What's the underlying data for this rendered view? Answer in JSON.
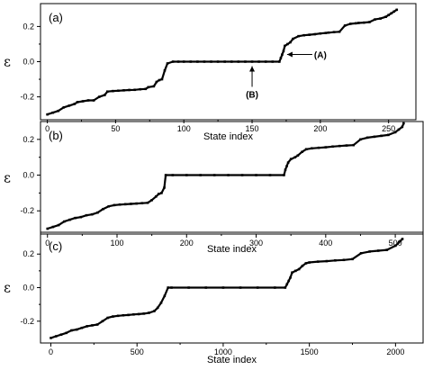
{
  "chart_data": [
    {
      "type": "scatter",
      "panel_label": "(a)",
      "ylabel": "ε",
      "xlabel": "State index",
      "xlim": [
        -5,
        270
      ],
      "ylim": [
        -0.33,
        0.33
      ],
      "x_ticks": [
        0,
        50,
        100,
        150,
        200,
        250
      ],
      "y_ticks": [
        -0.2,
        0.0,
        0.2
      ],
      "y_tick_labels": [
        "-0.2",
        "0.0",
        "0.2"
      ],
      "annotations": [
        {
          "text": "(A)",
          "target_x": 173,
          "target_y": 0.01
        },
        {
          "text": "(B)",
          "target_x": 150,
          "target_y": -0.01
        }
      ],
      "x": [
        0,
        4,
        8,
        12,
        16,
        20,
        22,
        26,
        30,
        34,
        38,
        42,
        44,
        48,
        52,
        56,
        60,
        64,
        68,
        72,
        74,
        78,
        80,
        82,
        84,
        86,
        88,
        92,
        96,
        100,
        105,
        110,
        115,
        120,
        125,
        130,
        135,
        140,
        145,
        150,
        155,
        160,
        165,
        170,
        171,
        172,
        173,
        174,
        176,
        178,
        180,
        184,
        188,
        192,
        196,
        200,
        204,
        206,
        210,
        214,
        218,
        222,
        226,
        228,
        232,
        236,
        240,
        244,
        248,
        250,
        252,
        254,
        256
      ],
      "y": [
        -0.3,
        -0.29,
        -0.28,
        -0.26,
        -0.25,
        -0.24,
        -0.23,
        -0.225,
        -0.22,
        -0.22,
        -0.2,
        -0.19,
        -0.17,
        -0.167,
        -0.165,
        -0.163,
        -0.161,
        -0.16,
        -0.157,
        -0.155,
        -0.145,
        -0.14,
        -0.115,
        -0.105,
        -0.1,
        -0.05,
        -0.01,
        0.0,
        0.0,
        0.0,
        0.0,
        0.0,
        0.0,
        0.0,
        0.0,
        0.0,
        0.0,
        0.0,
        0.0,
        0.0,
        0.0,
        0.0,
        0.0,
        0.0,
        0.02,
        0.04,
        0.06,
        0.09,
        0.1,
        0.11,
        0.13,
        0.145,
        0.15,
        0.153,
        0.156,
        0.16,
        0.163,
        0.165,
        0.168,
        0.17,
        0.205,
        0.215,
        0.218,
        0.22,
        0.222,
        0.225,
        0.24,
        0.245,
        0.255,
        0.265,
        0.275,
        0.285,
        0.295
      ]
    },
    {
      "type": "scatter",
      "panel_label": "(b)",
      "ylabel": "ε",
      "xlabel": "State index",
      "xlim": [
        -10,
        540
      ],
      "ylim": [
        -0.33,
        0.3
      ],
      "x_ticks": [
        0,
        100,
        200,
        300,
        400,
        500
      ],
      "y_ticks": [
        -0.2,
        0.0,
        0.2
      ],
      "y_tick_labels": [
        "-0.2",
        "0.0",
        "0.2"
      ],
      "x": [
        0,
        8,
        16,
        24,
        32,
        40,
        48,
        56,
        64,
        72,
        80,
        88,
        96,
        104,
        112,
        120,
        128,
        136,
        144,
        150,
        156,
        160,
        164,
        168,
        170,
        180,
        200,
        220,
        240,
        260,
        280,
        300,
        320,
        340,
        342,
        344,
        346,
        350,
        356,
        360,
        366,
        372,
        380,
        390,
        400,
        410,
        420,
        430,
        440,
        450,
        460,
        470,
        480,
        490,
        500,
        505,
        510,
        512
      ],
      "y": [
        -0.3,
        -0.29,
        -0.28,
        -0.26,
        -0.25,
        -0.24,
        -0.235,
        -0.225,
        -0.22,
        -0.21,
        -0.19,
        -0.175,
        -0.168,
        -0.165,
        -0.163,
        -0.161,
        -0.159,
        -0.157,
        -0.155,
        -0.14,
        -0.12,
        -0.105,
        -0.1,
        -0.07,
        0.0,
        0.0,
        0.0,
        0.0,
        0.0,
        0.0,
        0.0,
        0.0,
        0.0,
        0.0,
        0.03,
        0.05,
        0.07,
        0.09,
        0.1,
        0.11,
        0.13,
        0.145,
        0.15,
        0.153,
        0.156,
        0.16,
        0.163,
        0.166,
        0.168,
        0.2,
        0.21,
        0.215,
        0.22,
        0.225,
        0.24,
        0.255,
        0.27,
        0.29
      ]
    },
    {
      "type": "scatter",
      "panel_label": "(c)",
      "ylabel": "ε",
      "xlabel": "State index",
      "xlim": [
        -60,
        2160
      ],
      "ylim": [
        -0.33,
        0.33
      ],
      "x_ticks": [
        0,
        500,
        1000,
        1500,
        2000
      ],
      "y_ticks": [
        -0.2,
        0.0,
        0.2
      ],
      "y_tick_labels": [
        "-0.2",
        "0.0",
        "0.2"
      ],
      "x": [
        0,
        30,
        60,
        90,
        120,
        150,
        180,
        210,
        240,
        270,
        300,
        330,
        360,
        390,
        420,
        450,
        480,
        510,
        540,
        570,
        600,
        620,
        640,
        660,
        680,
        700,
        800,
        900,
        1000,
        1100,
        1200,
        1300,
        1360,
        1370,
        1380,
        1390,
        1400,
        1420,
        1440,
        1460,
        1480,
        1500,
        1550,
        1600,
        1650,
        1700,
        1750,
        1800,
        1850,
        1900,
        1950,
        2000,
        2020,
        2040
      ],
      "y": [
        -0.3,
        -0.29,
        -0.28,
        -0.27,
        -0.255,
        -0.25,
        -0.24,
        -0.23,
        -0.225,
        -0.22,
        -0.2,
        -0.18,
        -0.172,
        -0.168,
        -0.165,
        -0.163,
        -0.16,
        -0.158,
        -0.155,
        -0.15,
        -0.14,
        -0.12,
        -0.09,
        -0.05,
        0.0,
        0.0,
        0.0,
        0.0,
        0.0,
        0.0,
        0.0,
        0.0,
        0.0,
        0.02,
        0.04,
        0.06,
        0.09,
        0.1,
        0.11,
        0.13,
        0.145,
        0.15,
        0.155,
        0.158,
        0.162,
        0.165,
        0.17,
        0.205,
        0.215,
        0.22,
        0.225,
        0.25,
        0.27,
        0.29
      ]
    }
  ]
}
